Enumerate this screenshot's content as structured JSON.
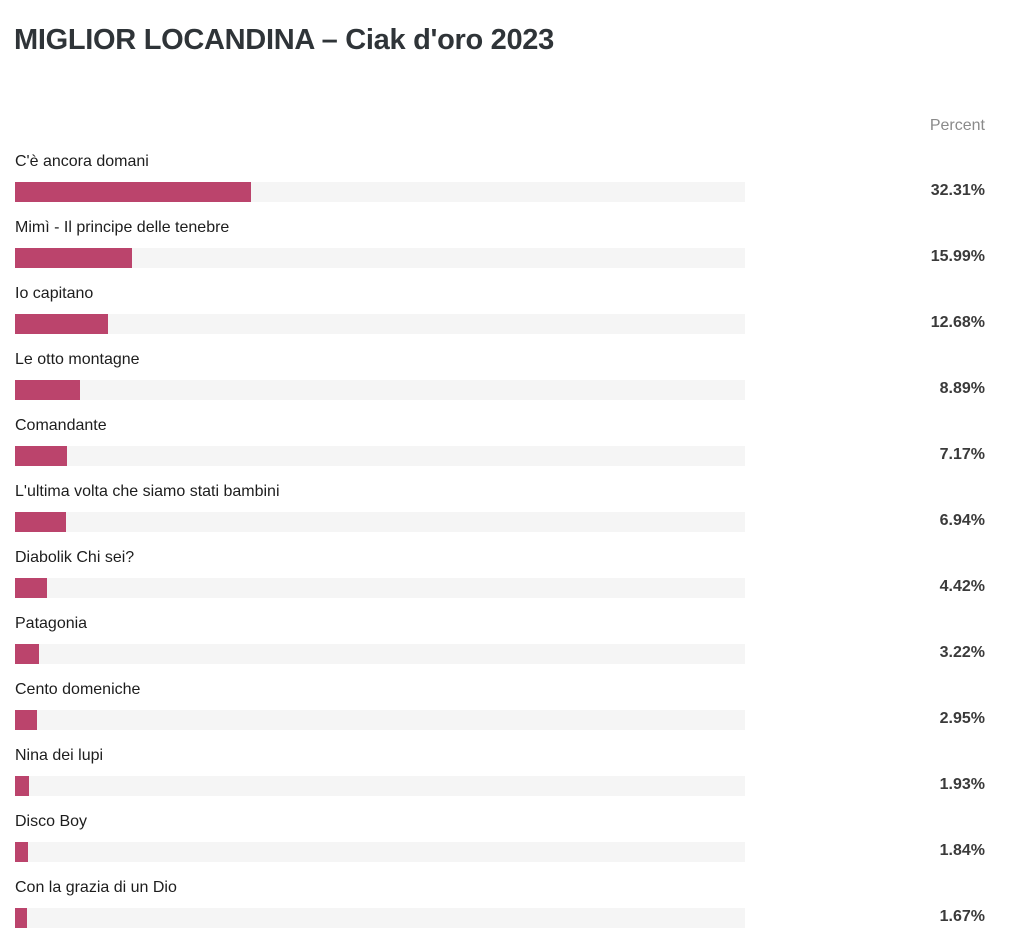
{
  "title": "MIGLIOR LOCANDINA – Ciak d'oro 2023",
  "column_header": "Percent",
  "colors": {
    "bar": "#bb446c",
    "track": "#f5f5f5",
    "title": "#2f3438"
  },
  "chart_data": {
    "type": "bar",
    "orientation": "horizontal",
    "title": "MIGLIOR LOCANDINA – Ciak d'oro 2023",
    "value_label": "Percent",
    "xlim": [
      0,
      100
    ],
    "categories": [
      "C'è ancora domani",
      "Mimì - Il principe delle tenebre",
      "Io capitano",
      "Le otto montagne",
      "Comandante",
      "L'ultima volta che siamo stati bambini",
      "Diabolik Chi sei?",
      "Patagonia",
      "Cento domeniche",
      "Nina dei lupi",
      "Disco Boy",
      "Con la grazia di un Dio"
    ],
    "values": [
      32.31,
      15.99,
      12.68,
      8.89,
      7.17,
      6.94,
      4.42,
      3.22,
      2.95,
      1.93,
      1.84,
      1.67
    ],
    "value_labels": [
      "32.31%",
      "15.99%",
      "12.68%",
      "8.89%",
      "7.17%",
      "6.94%",
      "4.42%",
      "3.22%",
      "2.95%",
      "1.93%",
      "1.84%",
      "1.67%"
    ]
  }
}
